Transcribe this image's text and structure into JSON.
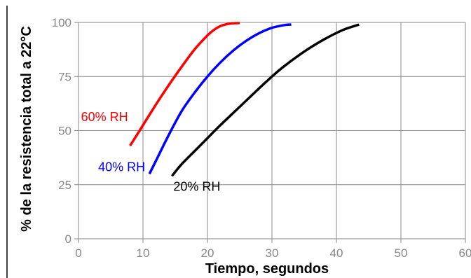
{
  "chart_data": {
    "type": "line",
    "title": "",
    "xlabel": "Tiempo, segundos",
    "ylabel": "% de la resistencia total a 22°C",
    "xlim": [
      0,
      60
    ],
    "ylim": [
      0,
      100
    ],
    "xticks": [
      0,
      10,
      20,
      30,
      40,
      50,
      60
    ],
    "yticks": [
      0,
      25,
      50,
      75,
      100
    ],
    "grid": true,
    "legend": "inline labels",
    "series": [
      {
        "name": "60% RH",
        "color": "#ff0000",
        "x": [
          8,
          10,
          12,
          14,
          16,
          18,
          20,
          21,
          22,
          23,
          24,
          25
        ],
        "y": [
          43,
          52.5,
          62,
          71,
          79.5,
          87.5,
          94,
          96.5,
          98.3,
          99.2,
          99.6,
          99.7
        ]
      },
      {
        "name": "40% RH",
        "color": "#0000ff",
        "x": [
          11,
          12,
          14,
          16,
          18,
          20,
          22,
          24,
          26,
          28,
          30,
          32,
          33
        ],
        "y": [
          30,
          36,
          48,
          59,
          67.5,
          75,
          81.5,
          87,
          91.5,
          95,
          97.5,
          98.8,
          99
        ]
      },
      {
        "name": "20% RH",
        "color": "#000000",
        "x": [
          14.5,
          16,
          18,
          20,
          22,
          25,
          28,
          30,
          32,
          35,
          38,
          41,
          43.5
        ],
        "y": [
          29,
          34.5,
          40.5,
          46.5,
          52.5,
          61,
          69.5,
          75,
          80,
          86.5,
          92,
          96.5,
          99
        ]
      }
    ]
  }
}
